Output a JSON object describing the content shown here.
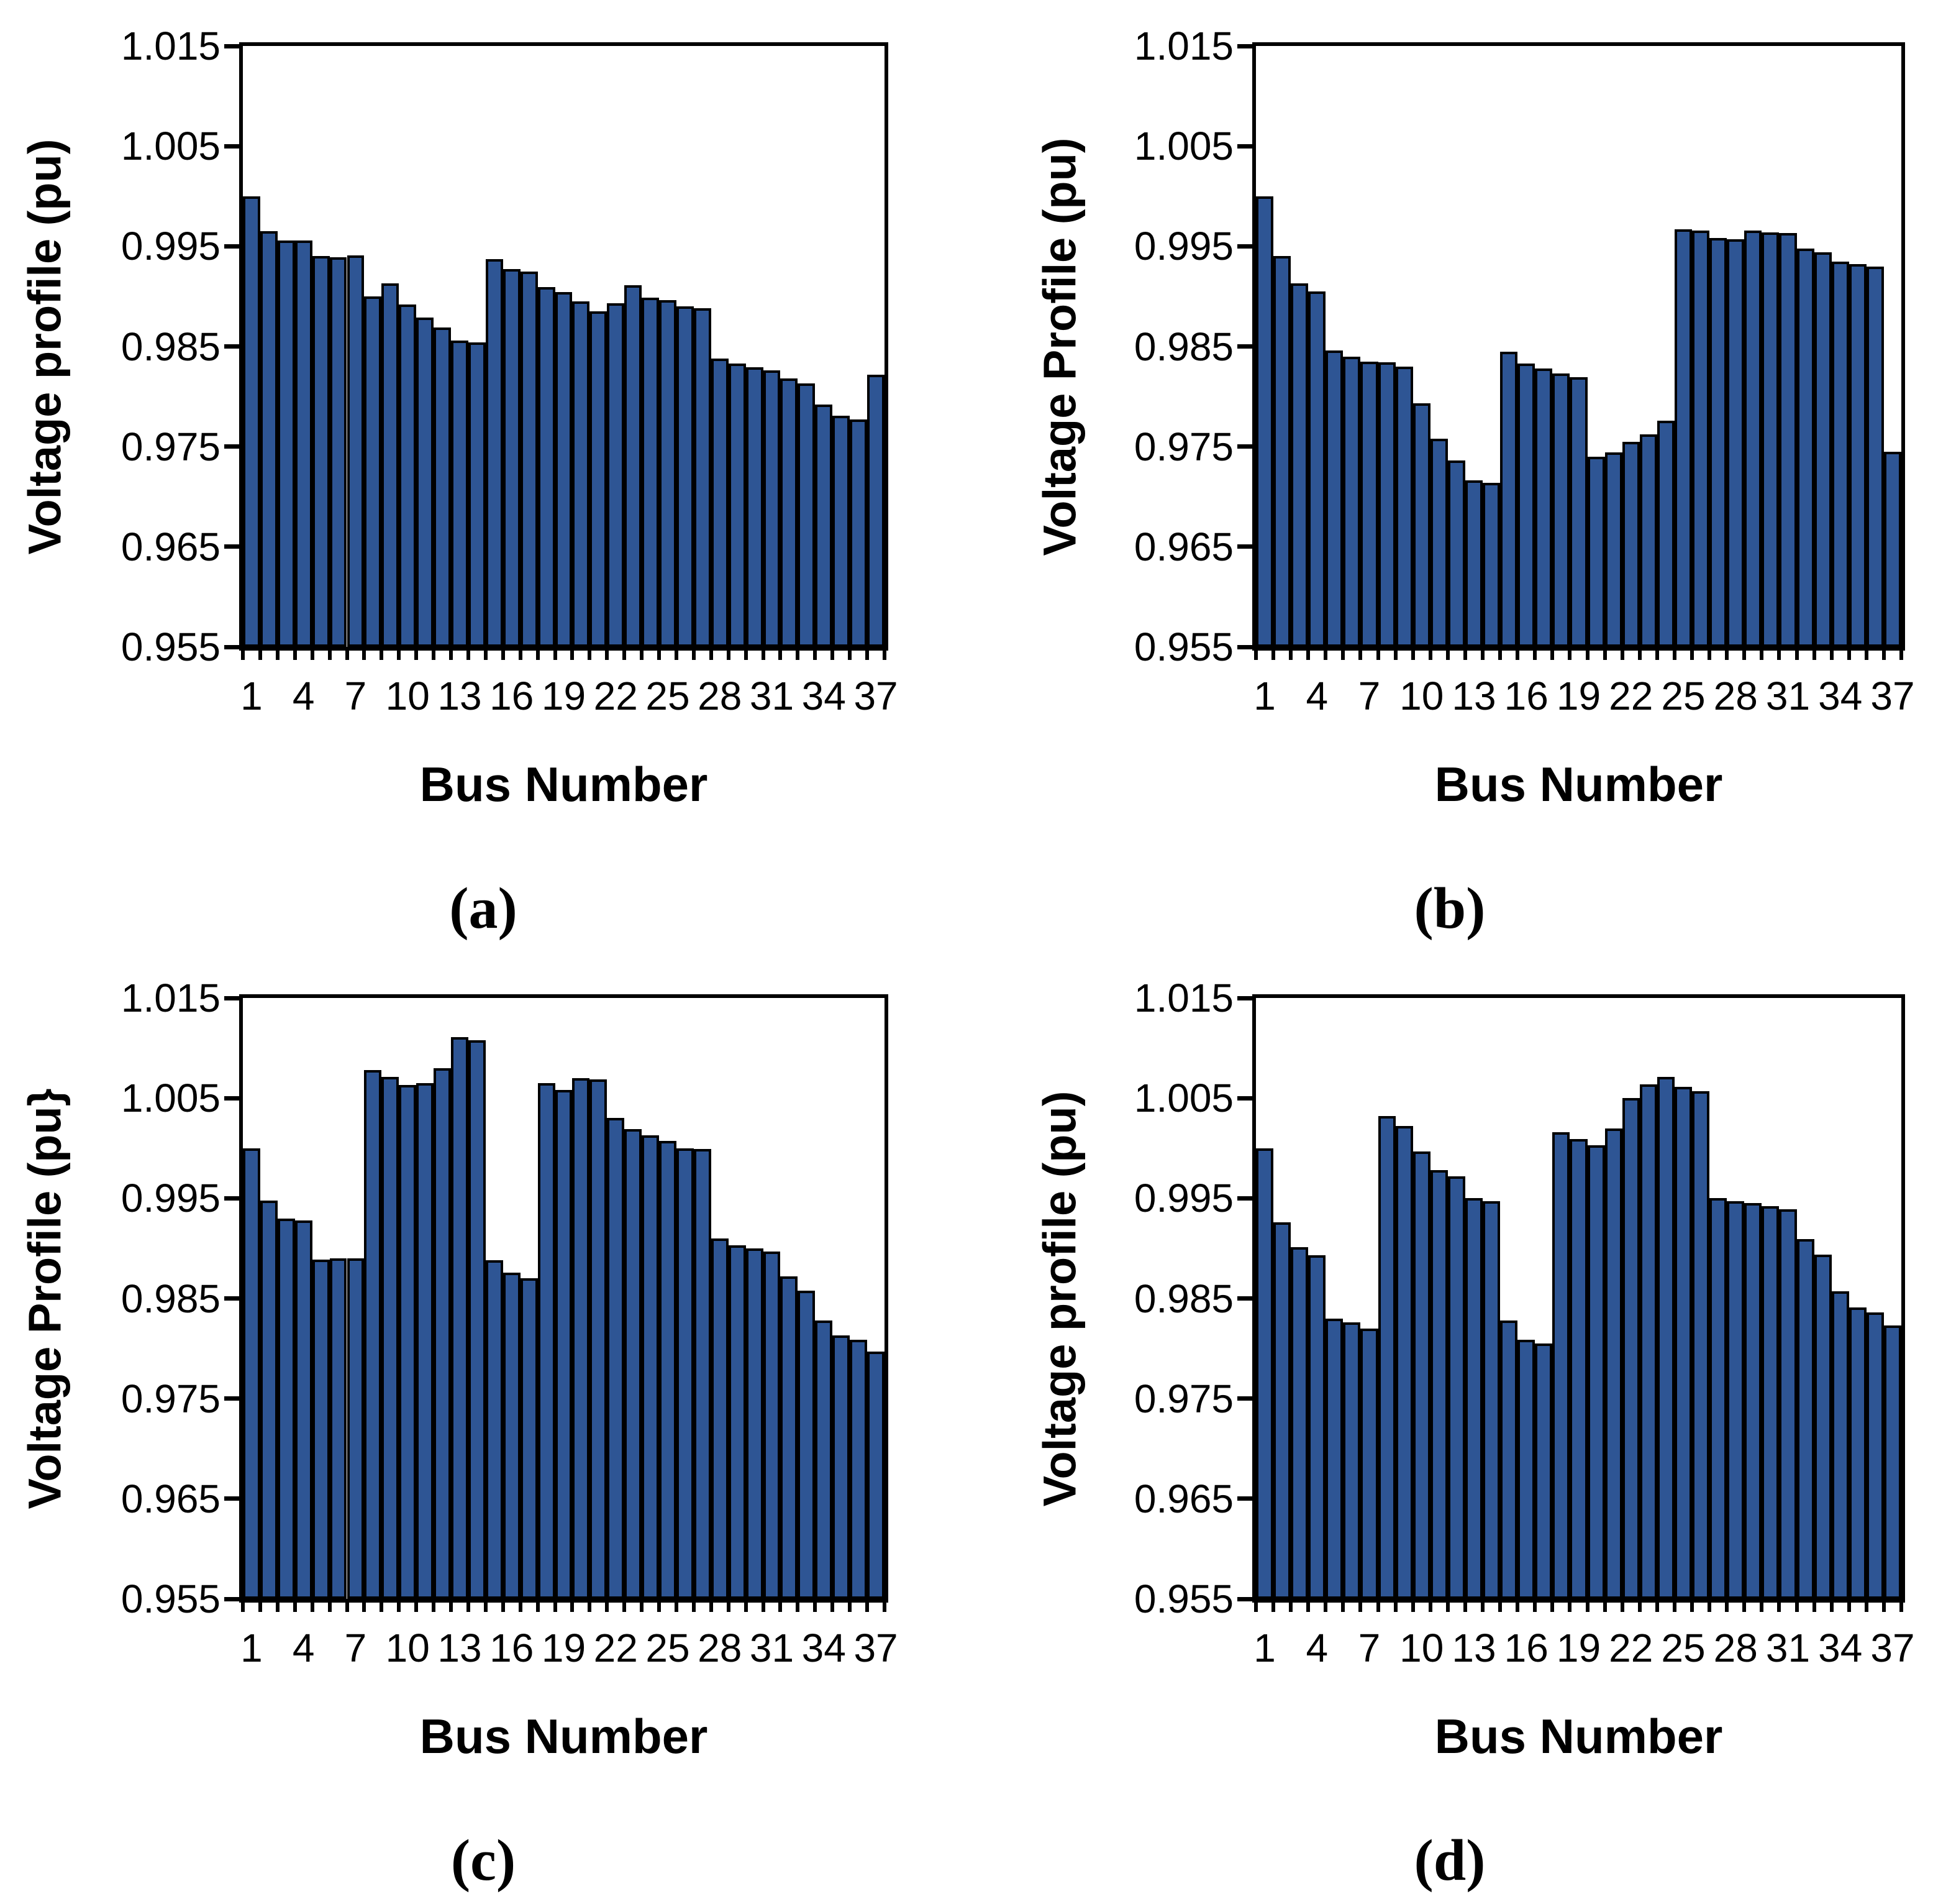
{
  "figure_title": "",
  "chart_data": [
    {
      "type": "bar",
      "panel": "a",
      "caption": "(a)",
      "ylabel": "Voltage profile (pu)",
      "xlabel": "Bus Number",
      "ylim": [
        0.955,
        1.015
      ],
      "ytick_labels": [
        "1.015",
        "1.005",
        "0.995",
        "0.985",
        "0.975",
        "0.965",
        "0.955"
      ],
      "ytick_values": [
        1.015,
        1.005,
        0.995,
        0.985,
        0.975,
        0.965,
        0.955
      ],
      "xtick_labels": [
        1,
        4,
        7,
        10,
        13,
        16,
        19,
        22,
        25,
        28,
        31,
        34,
        37
      ],
      "grid": false,
      "legend": false,
      "bar_color": "#2e5594",
      "bar_border_color": "#000000",
      "categories": [
        1,
        2,
        3,
        4,
        5,
        6,
        7,
        8,
        9,
        10,
        11,
        12,
        13,
        14,
        15,
        16,
        17,
        18,
        19,
        20,
        21,
        22,
        23,
        24,
        25,
        26,
        27,
        28,
        29,
        30,
        31,
        32,
        33,
        34,
        35,
        36,
        37
      ],
      "values": [
        1.0,
        0.9965,
        0.9956,
        0.9956,
        0.994,
        0.9939,
        0.9941,
        0.99,
        0.9913,
        0.9892,
        0.9879,
        0.9869,
        0.9856,
        0.9854,
        0.9937,
        0.9927,
        0.9925,
        0.9909,
        0.9904,
        0.9895,
        0.9885,
        0.9893,
        0.9911,
        0.9899,
        0.9896,
        0.989,
        0.9888,
        0.9838,
        0.9833,
        0.9829,
        0.9826,
        0.9818,
        0.9813,
        0.9792,
        0.9781,
        0.9777,
        0.9822
      ]
    },
    {
      "type": "bar",
      "panel": "b",
      "caption": "(b)",
      "ylabel": "Voltage Profile (pu)",
      "xlabel": "Bus Number",
      "ylim": [
        0.955,
        1.015
      ],
      "ytick_labels": [
        "1.015",
        "1.005",
        "0.995",
        "0.985",
        "0.975",
        "0.965",
        "0.955"
      ],
      "ytick_values": [
        1.015,
        1.005,
        0.995,
        0.985,
        0.975,
        0.965,
        0.955
      ],
      "xtick_labels": [
        1,
        4,
        7,
        10,
        13,
        16,
        19,
        22,
        25,
        28,
        31,
        34,
        37
      ],
      "grid": false,
      "legend": false,
      "bar_color": "#2e5594",
      "bar_border_color": "#000000",
      "categories": [
        1,
        2,
        3,
        4,
        5,
        6,
        7,
        8,
        9,
        10,
        11,
        12,
        13,
        14,
        15,
        16,
        17,
        18,
        19,
        20,
        21,
        22,
        23,
        24,
        25,
        26,
        27,
        28,
        29,
        30,
        31,
        32,
        33,
        34,
        35,
        36,
        37
      ],
      "values": [
        1.0,
        0.994,
        0.9913,
        0.9905,
        0.9846,
        0.984,
        0.9835,
        0.9834,
        0.983,
        0.9793,
        0.9758,
        0.9736,
        0.9716,
        0.9714,
        0.9845,
        0.9833,
        0.9828,
        0.9823,
        0.9819,
        0.974,
        0.9744,
        0.9755,
        0.9762,
        0.9776,
        0.9967,
        0.9966,
        0.9958,
        0.9957,
        0.9966,
        0.9964,
        0.9963,
        0.9948,
        0.9944,
        0.9935,
        0.9932,
        0.993,
        0.9745
      ]
    },
    {
      "type": "bar",
      "panel": "c",
      "caption": "(c)",
      "ylabel": "Voltage Profile (pu}",
      "xlabel": "Bus Number",
      "ylim": [
        0.955,
        1.015
      ],
      "ytick_labels": [
        "1.015",
        "1.005",
        "0.995",
        "0.985",
        "0.975",
        "0.965",
        "0.955"
      ],
      "ytick_values": [
        1.015,
        1.005,
        0.995,
        0.985,
        0.975,
        0.965,
        0.955
      ],
      "xtick_labels": [
        1,
        4,
        7,
        10,
        13,
        16,
        19,
        22,
        25,
        28,
        31,
        34,
        37
      ],
      "grid": false,
      "legend": false,
      "bar_color": "#2e5594",
      "bar_border_color": "#000000",
      "categories": [
        1,
        2,
        3,
        4,
        5,
        6,
        7,
        8,
        9,
        10,
        11,
        12,
        13,
        14,
        15,
        16,
        17,
        18,
        19,
        20,
        21,
        22,
        23,
        24,
        25,
        26,
        27,
        28,
        29,
        30,
        31,
        32,
        33,
        34,
        35,
        36,
        37
      ],
      "values": [
        1.0,
        0.9948,
        0.993,
        0.9928,
        0.9889,
        0.989,
        0.989,
        1.0078,
        1.0071,
        1.0063,
        1.0065,
        1.008,
        1.0111,
        1.0108,
        0.9888,
        0.9876,
        0.987,
        1.0065,
        1.0058,
        1.007,
        1.0069,
        1.003,
        1.0019,
        1.0013,
        1.0007,
        1.0,
        0.9999,
        0.991,
        0.9903,
        0.99,
        0.9897,
        0.9872,
        0.9858,
        0.9828,
        0.9813,
        0.9809,
        0.9797
      ]
    },
    {
      "type": "bar",
      "panel": "d",
      "caption": "(d)",
      "ylabel": "Voltage profile (pu)",
      "xlabel": "Bus Number",
      "ylim": [
        0.955,
        1.015
      ],
      "ytick_labels": [
        "1.015",
        "1.005",
        "0.995",
        "0.985",
        "0.975",
        "0.965",
        "0.955"
      ],
      "ytick_values": [
        1.015,
        1.005,
        0.995,
        0.985,
        0.975,
        0.965,
        0.955
      ],
      "xtick_labels": [
        1,
        4,
        7,
        10,
        13,
        16,
        19,
        22,
        25,
        28,
        31,
        34,
        37
      ],
      "grid": false,
      "legend": false,
      "bar_color": "#2e5594",
      "bar_border_color": "#000000",
      "categories": [
        1,
        2,
        3,
        4,
        5,
        6,
        7,
        8,
        9,
        10,
        11,
        12,
        13,
        14,
        15,
        16,
        17,
        18,
        19,
        20,
        21,
        22,
        23,
        24,
        25,
        26,
        27,
        28,
        29,
        30,
        31,
        32,
        33,
        34,
        35,
        36,
        37
      ],
      "values": [
        1.0,
        0.9926,
        0.9901,
        0.9893,
        0.983,
        0.9826,
        0.982,
        1.0032,
        1.0022,
        0.9997,
        0.9978,
        0.9972,
        0.995,
        0.9947,
        0.9828,
        0.9809,
        0.9805,
        1.0016,
        1.0009,
        1.0003,
        1.002,
        1.005,
        1.0064,
        1.0071,
        1.0061,
        1.0057,
        0.995,
        0.9947,
        0.9945,
        0.9942,
        0.9939,
        0.9909,
        0.9894,
        0.9857,
        0.9841,
        0.9836,
        0.9823
      ]
    }
  ]
}
